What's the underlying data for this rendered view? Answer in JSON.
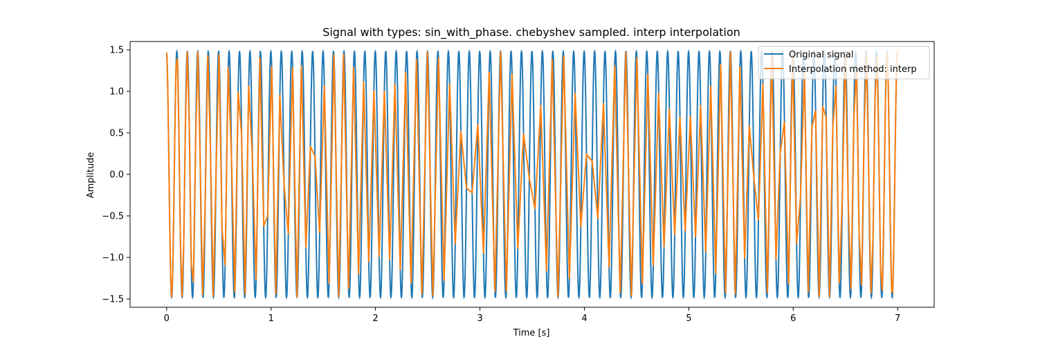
{
  "chart_data": {
    "type": "line",
    "title": "Signal with types: sin_with_phase. chebyshev sampled. interp interpolation",
    "xlabel": "Time [s]",
    "ylabel": "Amplitude",
    "xlim": [
      -0.35,
      7.35
    ],
    "ylim": [
      -1.6,
      1.6
    ],
    "xticks": [
      0,
      1,
      2,
      3,
      4,
      5,
      6,
      7
    ],
    "xtick_labels": [
      "0",
      "1",
      "2",
      "3",
      "4",
      "5",
      "6",
      "7"
    ],
    "yticks": [
      -1.5,
      -1.0,
      -0.5,
      0.0,
      0.5,
      1.0,
      1.5
    ],
    "ytick_labels": [
      "−1.5",
      "−1.0",
      "−0.5",
      "0.0",
      "0.5",
      "1.0",
      "1.5"
    ],
    "grid": false,
    "legend_position": "top-right",
    "series": [
      {
        "name": "Original signal",
        "color": "#1f77b4",
        "function": "amplitude * sin(2*pi*frequency*t + phase)",
        "amplitude": 1.48,
        "frequency": 10.0,
        "phase": 1.7,
        "t_range": [
          0,
          7
        ]
      },
      {
        "name": "Interpolation method: interp",
        "color": "#ff7f0e",
        "sampling": "chebyshev",
        "sample_count": 200,
        "interpolation": "linear",
        "t_range": [
          0,
          7
        ]
      }
    ]
  }
}
